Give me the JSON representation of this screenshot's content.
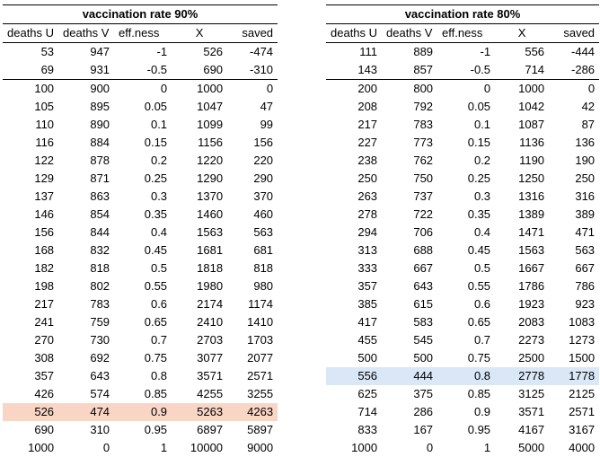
{
  "tables": [
    {
      "title": "vaccination rate 90%",
      "headers": [
        "deaths U",
        "deaths V",
        "eff.ness",
        "X",
        "saved"
      ],
      "rows": [
        [
          "53",
          "947",
          "-1",
          "526",
          "-474"
        ],
        [
          "69",
          "931",
          "-0.5",
          "690",
          "-310"
        ],
        [
          "100",
          "900",
          "0",
          "1000",
          "0"
        ],
        [
          "105",
          "895",
          "0.05",
          "1047",
          "47"
        ],
        [
          "110",
          "890",
          "0.1",
          "1099",
          "99"
        ],
        [
          "116",
          "884",
          "0.15",
          "1156",
          "156"
        ],
        [
          "122",
          "878",
          "0.2",
          "1220",
          "220"
        ],
        [
          "129",
          "871",
          "0.25",
          "1290",
          "290"
        ],
        [
          "137",
          "863",
          "0.3",
          "1370",
          "370"
        ],
        [
          "146",
          "854",
          "0.35",
          "1460",
          "460"
        ],
        [
          "156",
          "844",
          "0.4",
          "1563",
          "563"
        ],
        [
          "168",
          "832",
          "0.45",
          "1681",
          "681"
        ],
        [
          "182",
          "818",
          "0.5",
          "1818",
          "818"
        ],
        [
          "198",
          "802",
          "0.55",
          "1980",
          "980"
        ],
        [
          "217",
          "783",
          "0.6",
          "2174",
          "1174"
        ],
        [
          "241",
          "759",
          "0.65",
          "2410",
          "1410"
        ],
        [
          "270",
          "730",
          "0.7",
          "2703",
          "1703"
        ],
        [
          "308",
          "692",
          "0.75",
          "3077",
          "2077"
        ],
        [
          "357",
          "643",
          "0.8",
          "3571",
          "2571"
        ],
        [
          "426",
          "574",
          "0.85",
          "4255",
          "3255"
        ],
        [
          "526",
          "474",
          "0.9",
          "5263",
          "4263"
        ],
        [
          "690",
          "310",
          "0.95",
          "6897",
          "5897"
        ],
        [
          "1000",
          "0",
          "1",
          "10000",
          "9000"
        ]
      ],
      "highlight_row": 20,
      "highlight_color": "#f8d5c4"
    },
    {
      "title": "vaccination rate 80%",
      "headers": [
        "deaths U",
        "deaths V",
        "eff.ness",
        "X",
        "saved"
      ],
      "rows": [
        [
          "111",
          "889",
          "-1",
          "556",
          "-444"
        ],
        [
          "143",
          "857",
          "-0.5",
          "714",
          "-286"
        ],
        [
          "200",
          "800",
          "0",
          "1000",
          "0"
        ],
        [
          "208",
          "792",
          "0.05",
          "1042",
          "42"
        ],
        [
          "217",
          "783",
          "0.1",
          "1087",
          "87"
        ],
        [
          "227",
          "773",
          "0.15",
          "1136",
          "136"
        ],
        [
          "238",
          "762",
          "0.2",
          "1190",
          "190"
        ],
        [
          "250",
          "750",
          "0.25",
          "1250",
          "250"
        ],
        [
          "263",
          "737",
          "0.3",
          "1316",
          "316"
        ],
        [
          "278",
          "722",
          "0.35",
          "1389",
          "389"
        ],
        [
          "294",
          "706",
          "0.4",
          "1471",
          "471"
        ],
        [
          "313",
          "688",
          "0.45",
          "1563",
          "563"
        ],
        [
          "333",
          "667",
          "0.5",
          "1667",
          "667"
        ],
        [
          "357",
          "643",
          "0.55",
          "1786",
          "786"
        ],
        [
          "385",
          "615",
          "0.6",
          "1923",
          "923"
        ],
        [
          "417",
          "583",
          "0.65",
          "2083",
          "1083"
        ],
        [
          "455",
          "545",
          "0.7",
          "2273",
          "1273"
        ],
        [
          "500",
          "500",
          "0.75",
          "2500",
          "1500"
        ],
        [
          "556",
          "444",
          "0.8",
          "2778",
          "1778"
        ],
        [
          "625",
          "375",
          "0.85",
          "3125",
          "2125"
        ],
        [
          "714",
          "286",
          "0.9",
          "3571",
          "2571"
        ],
        [
          "833",
          "167",
          "0.95",
          "4167",
          "3167"
        ],
        [
          "1000",
          "0",
          "1",
          "5000",
          "4000"
        ]
      ],
      "highlight_row": 18,
      "highlight_color": "#d9e7f7"
    }
  ]
}
